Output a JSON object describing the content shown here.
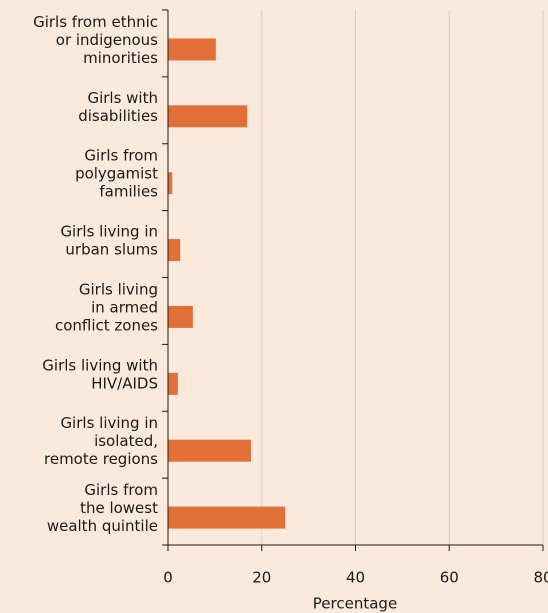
{
  "chart_data": {
    "type": "barh",
    "categories": [
      [
        "Girls from ethnic",
        "or indigenous",
        "minorities"
      ],
      [
        "Girls with",
        "disabilities"
      ],
      [
        "Girls from",
        "polygamist",
        "families"
      ],
      [
        "Girls living in",
        "urban slums"
      ],
      [
        "Girls living",
        "in armed",
        "conflict zones"
      ],
      [
        "Girls living with",
        "HIV/AIDS"
      ],
      [
        "Girls living in",
        "isolated,",
        "remote regions"
      ],
      [
        "Girls from",
        "the lowest",
        "wealth quintile"
      ]
    ],
    "values": [
      10.2,
      16.9,
      0.9,
      2.6,
      5.3,
      2.1,
      17.7,
      25
    ],
    "color": "#e07038",
    "xlabel": "Percentage",
    "xlim": [
      0,
      80
    ],
    "xticks": [
      0,
      20,
      40,
      60,
      80
    ],
    "grid": true
  }
}
